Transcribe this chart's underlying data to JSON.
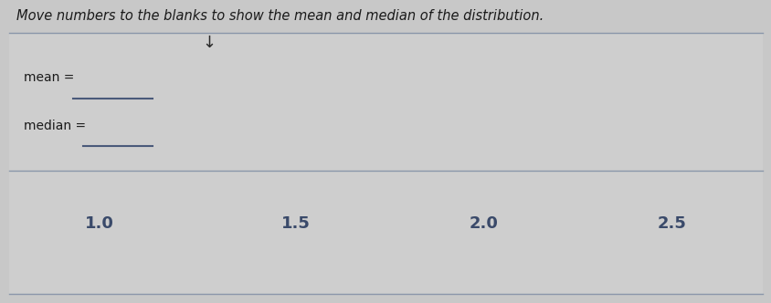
{
  "title": "Move numbers to the blanks to show the mean and median of the distribution.",
  "title_fontsize": 10.5,
  "title_color": "#1a1a1a",
  "background_color": "#c8c8c8",
  "top_panel_color": "#cecece",
  "bottom_panel_color": "#cecece",
  "divider_color": "#8a96aa",
  "mean_label": "mean =",
  "median_label": "median =",
  "label_color": "#1a1a1a",
  "label_fontsize": 10,
  "underline_color": "#4a5a7a",
  "tick_labels": [
    "1.0",
    "1.5",
    "2.0",
    "2.5"
  ],
  "tick_fontsize": 13,
  "tick_color": "#3a4a6a",
  "fig_width": 8.25,
  "fig_height": 3.76
}
